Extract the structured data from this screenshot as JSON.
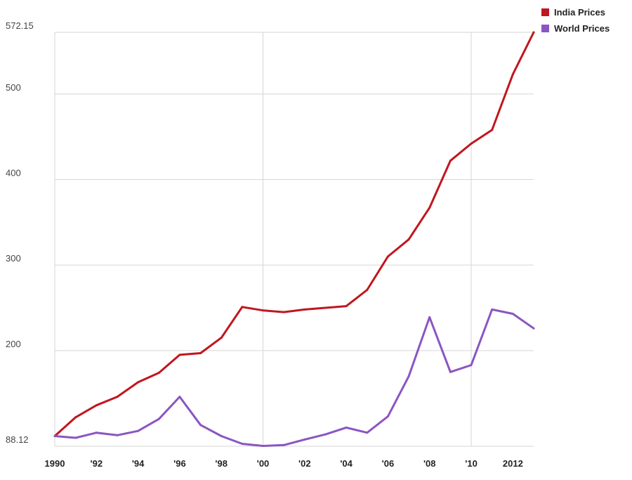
{
  "chart_data": {
    "type": "line",
    "title": "",
    "xlabel": "",
    "ylabel": "",
    "x": [
      1990,
      1991,
      1992,
      1993,
      1994,
      1995,
      1996,
      1997,
      1998,
      1999,
      2000,
      2001,
      2002,
      2003,
      2004,
      2005,
      2006,
      2007,
      2008,
      2009,
      2010,
      2011,
      2012,
      2013
    ],
    "x_ticks": [
      {
        "value": 1990,
        "label": "1990"
      },
      {
        "value": 1992,
        "label": "'92"
      },
      {
        "value": 1994,
        "label": "'94"
      },
      {
        "value": 1996,
        "label": "'96"
      },
      {
        "value": 1998,
        "label": "'98"
      },
      {
        "value": 2000,
        "label": "'00"
      },
      {
        "value": 2002,
        "label": "'02"
      },
      {
        "value": 2004,
        "label": "'04"
      },
      {
        "value": 2006,
        "label": "'06"
      },
      {
        "value": 2008,
        "label": "'08"
      },
      {
        "value": 2010,
        "label": "'10"
      },
      {
        "value": 2012,
        "label": "2012"
      }
    ],
    "x_gridlines": [
      1990,
      2000,
      2010
    ],
    "xlim": [
      1990,
      2013
    ],
    "y_ticks": [
      {
        "value": 88.12,
        "label": "88.12"
      },
      {
        "value": 200,
        "label": "200"
      },
      {
        "value": 300,
        "label": "300"
      },
      {
        "value": 400,
        "label": "400"
      },
      {
        "value": 500,
        "label": "500"
      },
      {
        "value": 572.15,
        "label": "572.15"
      }
    ],
    "ylim": [
      88.12,
      572.15
    ],
    "grid": true,
    "legend_position": "top-right",
    "series": [
      {
        "name": "India Prices",
        "color": "#c0161f",
        "values": [
          100,
          122,
          136,
          146,
          163,
          174,
          195,
          197,
          215,
          251,
          247,
          245,
          248,
          250,
          252,
          271,
          310,
          330,
          367,
          422,
          442,
          458,
          523,
          572.15
        ]
      },
      {
        "name": "World Prices",
        "color": "#8b55c2",
        "values": [
          100,
          98,
          104,
          101,
          106,
          120,
          146,
          113,
          100,
          91,
          88.5,
          89.5,
          96,
          102,
          110,
          104,
          123,
          170,
          239,
          175,
          183,
          248,
          243,
          226
        ]
      }
    ]
  }
}
